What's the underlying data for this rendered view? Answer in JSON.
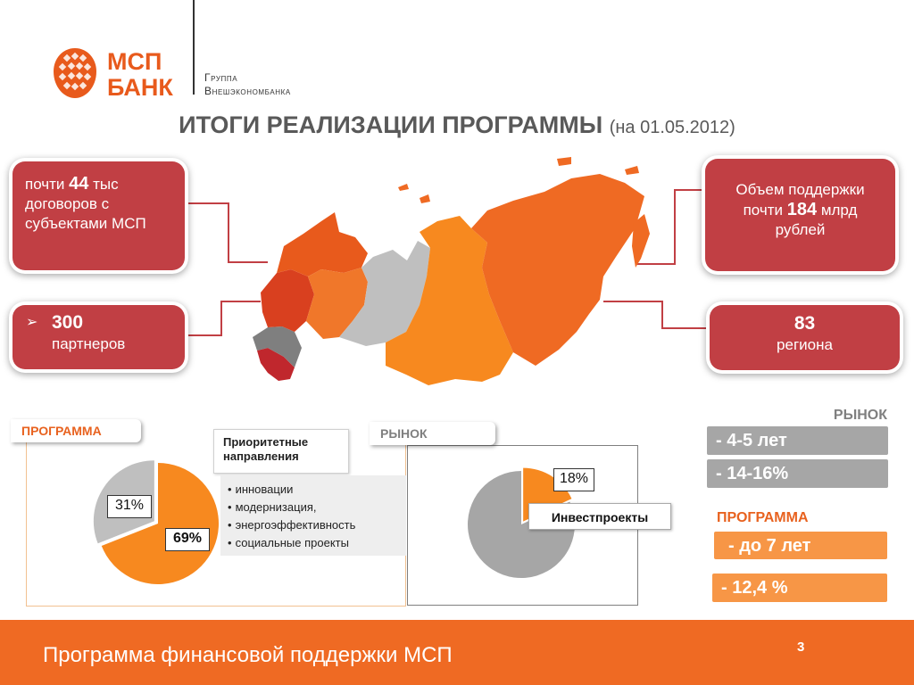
{
  "header": {
    "logo_text": "МСП\nБАНК",
    "group_line1": "Группа",
    "group_line2": "Внешэкономбанка",
    "title": "ИТОГИ РЕАЛИЗАЦИИ ПРОГРАММЫ",
    "title_date": "(на 01.05.2012)"
  },
  "boxes": {
    "contracts": {
      "prefix": "почти ",
      "num": "44",
      "suffix": " тыс договоров с субъектами МСП"
    },
    "partners": {
      "arrow": "➢",
      "num": "300",
      "label": "партнеров"
    },
    "volume": {
      "line1": "Объем поддержки",
      "prefix": "почти ",
      "num": "184",
      "suffix": " млрд",
      "line3": "рублей"
    },
    "regions": {
      "num": "83",
      "label": "региона"
    }
  },
  "program": {
    "tab": "ПРОГРАММА",
    "priority_title": "Приоритетные направления",
    "priorities": [
      "инновации",
      "модернизация,",
      "энергоэффективность",
      "социальные проекты"
    ],
    "pie_label_small": "31%",
    "pie_label_big": "69%"
  },
  "market": {
    "tab": "РЫНОК",
    "pie_label": "18%",
    "invest_label": "Инвестпроекты"
  },
  "chart_data": [
    {
      "type": "pie",
      "values": [
        69,
        31
      ],
      "labels": [
        "69%",
        "31%"
      ],
      "colors": [
        "#f7891f",
        "#bfbfbf"
      ]
    },
    {
      "type": "pie",
      "values": [
        18,
        82
      ],
      "labels": [
        "18%",
        ""
      ],
      "colors": [
        "#f7891f",
        "#a6a6a6"
      ]
    }
  ],
  "sidebar": {
    "market_heading": "РЫНОК",
    "market_term": "- 4-5 лет",
    "market_rate": "- 14-16%",
    "program_heading": "ПРОГРАММА",
    "program_term": "- до 7 лет",
    "program_rate": "- 12,4 %"
  },
  "footer": {
    "text": "Программа финансовой поддержки МСП",
    "page": "3"
  },
  "colors": {
    "brand_orange": "#ef6a23",
    "box_red": "#c13f44",
    "gray": "#a6a6a6",
    "orange_bar": "#f79646"
  }
}
